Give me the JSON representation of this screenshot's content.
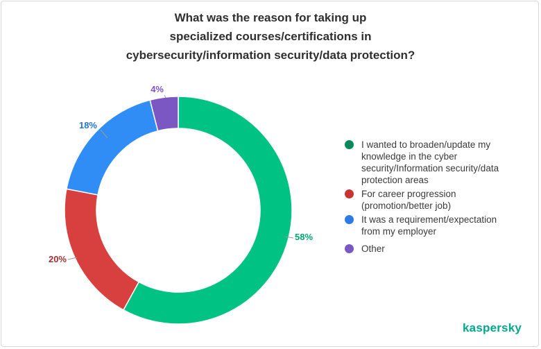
{
  "title_lines": [
    "What was the reason for taking up",
    "specialized courses/certifications in",
    "cybersecurity/information security/data protection?"
  ],
  "chart_data": {
    "type": "pie",
    "donut": true,
    "title": "What was the reason for taking up specialized courses/certifications in cybersecurity/information security/data protection?",
    "legend_position": "right",
    "slices": [
      {
        "label": "I wanted to broaden/update my knowledge in the cyber security/Information security/data protection areas",
        "value": 58,
        "value_label": "58%",
        "color": "#00c383",
        "label_color": "#00a870"
      },
      {
        "label": "For career progression (promotion/better job)",
        "value": 20,
        "value_label": "20%",
        "color": "#d83f3f",
        "label_color": "#a03030"
      },
      {
        "label": "It was a requirement/expectation from my employer",
        "value": 18,
        "value_label": "18%",
        "color": "#2f8df5",
        "label_color": "#2474d0"
      },
      {
        "label": "Other",
        "value": 4,
        "value_label": "4%",
        "color": "#7b57c4",
        "label_color": "#7b57c4"
      }
    ]
  },
  "legend": [
    {
      "text": "I wanted to broaden/update my\nknowledge in the cyber\nsecurity/Information security/data\nprotection areas",
      "color": "#0a8a5c"
    },
    {
      "text": "For career progression\n(promotion/better job)",
      "color": "#c83434"
    },
    {
      "text": "It was a requirement/expectation\nfrom my employer",
      "color": "#2f7be6"
    },
    {
      "text": "Other",
      "color": "#7b57c4"
    }
  ],
  "brand": "kaspersky"
}
